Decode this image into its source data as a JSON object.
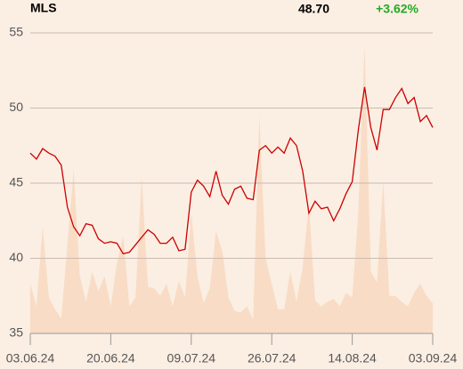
{
  "chart_data": {
    "type": "line",
    "title": "MLS",
    "price": "48.70",
    "change": "+3.62%",
    "change_color": "#22aa22",
    "categories": [
      "03.06.24",
      null,
      null,
      null,
      null,
      null,
      null,
      null,
      null,
      null,
      null,
      null,
      null,
      "20.06.24",
      null,
      null,
      null,
      null,
      null,
      null,
      null,
      null,
      null,
      null,
      null,
      null,
      "09.07.24",
      null,
      null,
      null,
      null,
      null,
      null,
      null,
      null,
      null,
      null,
      null,
      null,
      "26.07.24",
      null,
      null,
      null,
      null,
      null,
      null,
      null,
      null,
      null,
      null,
      null,
      null,
      "14.08.24",
      null,
      null,
      null,
      null,
      null,
      null,
      null,
      null,
      null,
      null,
      null,
      null,
      "03.09.24"
    ],
    "series": [
      {
        "type": "area",
        "color": "#f8dcc5",
        "values": [
          38.3,
          36.8,
          42.1,
          37.4,
          36.6,
          36.0,
          40.9,
          45.9,
          38.8,
          37.1,
          39.1,
          37.8,
          38.8,
          36.8,
          39.7,
          41.5,
          36.8,
          37.4,
          45.4,
          38.1,
          38.0,
          37.5,
          38.3,
          36.8,
          38.5,
          37.4,
          43.0,
          38.8,
          37.0,
          38.0,
          41.8,
          40.5,
          37.4,
          36.5,
          36.4,
          36.8,
          35.9,
          49.5,
          40.0,
          38.3,
          36.6,
          36.6,
          39.1,
          37.1,
          39.4,
          43.6,
          37.2,
          36.8,
          37.1,
          37.3,
          36.8,
          37.7,
          37.4,
          43.2,
          54.1,
          39.1,
          38.4,
          45.1,
          37.5,
          37.5,
          37.1,
          36.8,
          37.7,
          38.3,
          37.5,
          37.0
        ]
      },
      {
        "type": "line",
        "color": "#cc0000",
        "values": [
          47.0,
          46.6,
          47.3,
          47.0,
          46.8,
          46.2,
          43.4,
          42.1,
          41.5,
          42.3,
          42.2,
          41.3,
          41.0,
          41.1,
          41.0,
          40.3,
          40.4,
          40.9,
          41.4,
          41.9,
          41.6,
          41.0,
          41.0,
          41.4,
          40.5,
          40.6,
          44.4,
          45.2,
          44.8,
          44.1,
          45.8,
          44.2,
          43.6,
          44.6,
          44.8,
          44.0,
          43.9,
          47.2,
          47.5,
          47.0,
          47.4,
          47.0,
          48.0,
          47.5,
          45.8,
          43.0,
          43.8,
          43.3,
          43.4,
          42.5,
          43.3,
          44.3,
          45.1,
          48.6,
          51.4,
          48.7,
          47.2,
          49.9,
          49.9,
          50.7,
          51.3,
          50.3,
          50.7,
          49.1,
          49.5,
          48.7
        ]
      }
    ],
    "ylim": [
      35,
      55
    ],
    "yticks": [
      35,
      40,
      45,
      50,
      55
    ],
    "grid": true
  }
}
